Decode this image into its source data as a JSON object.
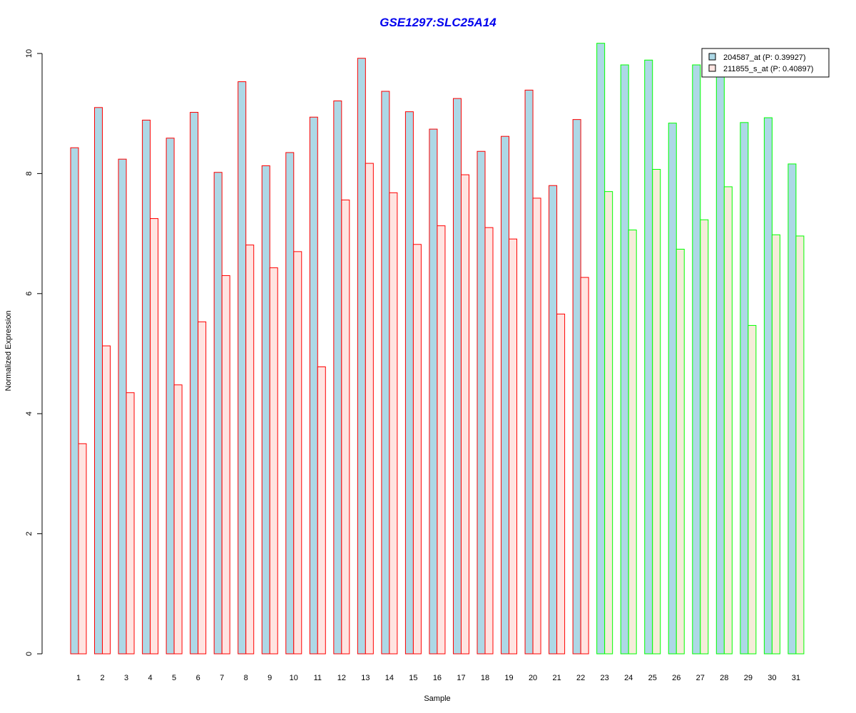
{
  "chart_data": {
    "type": "bar",
    "title": "GSE1297:SLC25A14",
    "xlabel": "Sample",
    "ylabel": "Normalized Expression",
    "ylim": [
      0,
      10.2
    ],
    "yticks": [
      0,
      2,
      4,
      6,
      8,
      10
    ],
    "categories": [
      "1",
      "2",
      "3",
      "4",
      "5",
      "6",
      "7",
      "8",
      "9",
      "10",
      "11",
      "12",
      "13",
      "14",
      "15",
      "16",
      "17",
      "18",
      "19",
      "20",
      "21",
      "22",
      "23",
      "24",
      "25",
      "26",
      "27",
      "28",
      "29",
      "30",
      "31"
    ],
    "series": [
      {
        "name": "204587_at (P: 0.39927)",
        "fill": "#add8e6",
        "values": [
          8.43,
          9.1,
          8.24,
          8.89,
          8.59,
          9.02,
          8.02,
          9.53,
          8.13,
          8.35,
          8.94,
          9.21,
          9.92,
          9.37,
          9.03,
          8.74,
          9.25,
          8.37,
          8.62,
          9.39,
          7.8,
          8.9,
          10.17,
          9.81,
          9.89,
          8.84,
          9.81,
          9.61,
          8.85,
          8.93,
          8.16
        ]
      },
      {
        "name": "211855_s_at (P: 0.40897)",
        "fill_group1": "#ffe4e1",
        "fill_group2": "#f5ecd9",
        "values": [
          3.5,
          5.13,
          4.35,
          7.25,
          4.48,
          5.53,
          6.3,
          6.81,
          6.43,
          6.7,
          4.78,
          7.56,
          8.17,
          7.68,
          6.82,
          7.13,
          7.98,
          7.1,
          6.91,
          7.59,
          5.66,
          6.27,
          7.7,
          7.06,
          8.07,
          6.74,
          7.23,
          7.78,
          5.47,
          6.98,
          6.96
        ]
      }
    ],
    "groups": [
      {
        "samples": [
          1,
          22
        ],
        "border": "#ff0000"
      },
      {
        "samples": [
          23,
          31
        ],
        "border": "#00ff00"
      }
    ],
    "legend_position": "top-right",
    "grid": false,
    "title_color": "#0000ee"
  }
}
